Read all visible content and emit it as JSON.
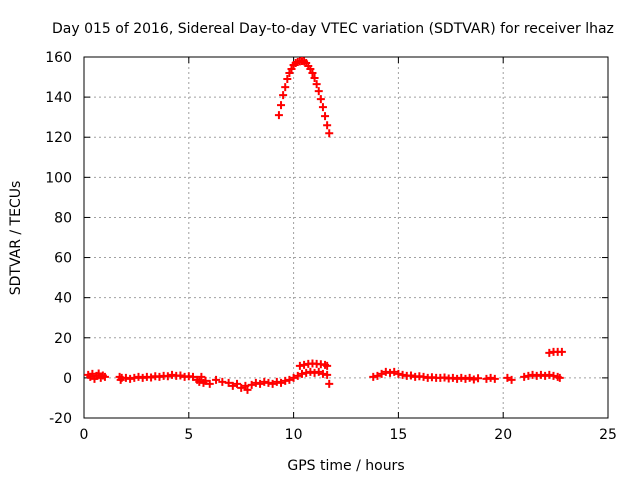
{
  "chart_data": {
    "type": "scatter",
    "title": "Day 015 of 2016, Sidereal Day-to-day VTEC variation (SDTVAR) for receiver lhaz",
    "xlabel": "GPS time / hours",
    "ylabel": "SDTVAR / TECUs",
    "xlim": [
      0,
      25
    ],
    "ylim": [
      -20,
      160
    ],
    "xticks": [
      0,
      5,
      10,
      15,
      20,
      25
    ],
    "yticks": [
      -20,
      0,
      20,
      40,
      60,
      80,
      100,
      120,
      140,
      160
    ],
    "grid": true,
    "legend": "none",
    "marker": "plus",
    "color": "#ff0000",
    "series": [
      {
        "points": [
          [
            0.2,
            1.5
          ],
          [
            0.3,
            0.5
          ],
          [
            0.4,
            2.0
          ],
          [
            0.5,
            -0.5
          ],
          [
            0.6,
            1.0
          ],
          [
            0.7,
            2.2
          ],
          [
            0.8,
            0.0
          ],
          [
            0.9,
            1.2
          ],
          [
            1.0,
            0.5
          ],
          [
            1.7,
            0.5
          ],
          [
            1.75,
            -1.0
          ],
          [
            1.8,
            0.0
          ],
          [
            2.0,
            0.0
          ],
          [
            2.2,
            -0.5
          ],
          [
            2.4,
            0.0
          ],
          [
            2.6,
            0.5
          ],
          [
            2.8,
            0.0
          ],
          [
            3.0,
            0.5
          ],
          [
            3.2,
            0.2
          ],
          [
            3.4,
            0.8
          ],
          [
            3.6,
            0.5
          ],
          [
            3.8,
            1.0
          ],
          [
            4.0,
            0.8
          ],
          [
            4.2,
            1.5
          ],
          [
            4.4,
            1.0
          ],
          [
            4.6,
            1.2
          ],
          [
            4.8,
            0.5
          ],
          [
            5.0,
            0.8
          ],
          [
            5.2,
            0.5
          ],
          [
            5.4,
            -1.0
          ],
          [
            5.5,
            -2.0
          ],
          [
            5.6,
            0.5
          ],
          [
            5.7,
            -2.5
          ],
          [
            5.8,
            -1.5
          ],
          [
            6.0,
            -3.0
          ],
          [
            6.3,
            -1.0
          ],
          [
            6.6,
            -2.0
          ],
          [
            6.9,
            -2.5
          ],
          [
            7.1,
            -4.0
          ],
          [
            7.3,
            -3.0
          ],
          [
            7.5,
            -5.0
          ],
          [
            7.7,
            -4.0
          ],
          [
            7.8,
            -6.0
          ],
          [
            8.0,
            -3.5
          ],
          [
            8.2,
            -2.5
          ],
          [
            8.4,
            -3.0
          ],
          [
            8.6,
            -2.0
          ],
          [
            8.8,
            -2.5
          ],
          [
            9.0,
            -3.0
          ],
          [
            9.2,
            -2.0
          ],
          [
            9.4,
            -2.5
          ],
          [
            9.6,
            -1.5
          ],
          [
            9.8,
            -1.0
          ],
          [
            10.0,
            0.0
          ],
          [
            10.2,
            1.0
          ],
          [
            10.4,
            2.0
          ],
          [
            10.6,
            2.5
          ],
          [
            10.8,
            3.0
          ],
          [
            11.0,
            2.5
          ],
          [
            11.2,
            3.0
          ],
          [
            11.4,
            2.0
          ],
          [
            11.6,
            1.5
          ],
          [
            11.7,
            -3.0
          ],
          [
            10.3,
            6.0
          ],
          [
            10.5,
            6.5
          ],
          [
            10.7,
            7.0
          ],
          [
            10.9,
            7.2
          ],
          [
            11.1,
            7.0
          ],
          [
            11.3,
            6.8
          ],
          [
            11.5,
            6.5
          ],
          [
            11.6,
            6.0
          ],
          [
            9.3,
            131
          ],
          [
            9.4,
            136
          ],
          [
            9.5,
            141
          ],
          [
            9.6,
            145
          ],
          [
            9.7,
            149
          ],
          [
            9.8,
            152
          ],
          [
            9.9,
            154
          ],
          [
            10.0,
            156
          ],
          [
            10.1,
            157
          ],
          [
            10.2,
            157.5
          ],
          [
            10.3,
            157.8
          ],
          [
            10.4,
            158
          ],
          [
            10.5,
            157.8
          ],
          [
            10.6,
            157
          ],
          [
            10.7,
            155.5
          ],
          [
            10.8,
            154
          ],
          [
            10.9,
            152
          ],
          [
            11.0,
            149.5
          ],
          [
            11.1,
            146.5
          ],
          [
            11.2,
            143
          ],
          [
            11.3,
            139
          ],
          [
            11.4,
            135
          ],
          [
            11.5,
            130.5
          ],
          [
            11.6,
            126
          ],
          [
            11.7,
            122
          ],
          [
            13.8,
            0.5
          ],
          [
            14.0,
            1.0
          ],
          [
            14.2,
            2.0
          ],
          [
            14.4,
            3.0
          ],
          [
            14.6,
            2.5
          ],
          [
            14.8,
            3.0
          ],
          [
            15.0,
            2.0
          ],
          [
            15.2,
            1.5
          ],
          [
            15.4,
            1.0
          ],
          [
            15.6,
            1.2
          ],
          [
            15.8,
            0.5
          ],
          [
            16.0,
            0.8
          ],
          [
            16.2,
            0.5
          ],
          [
            16.4,
            0.0
          ],
          [
            16.6,
            0.3
          ],
          [
            16.8,
            0.0
          ],
          [
            17.0,
            0.0
          ],
          [
            17.2,
            0.2
          ],
          [
            17.4,
            -0.3
          ],
          [
            17.6,
            0.0
          ],
          [
            17.8,
            -0.5
          ],
          [
            18.0,
            0.0
          ],
          [
            18.2,
            -0.5
          ],
          [
            18.4,
            0.0
          ],
          [
            18.6,
            -0.8
          ],
          [
            18.8,
            -0.2
          ],
          [
            19.2,
            -0.5
          ],
          [
            19.4,
            0.0
          ],
          [
            19.6,
            -0.5
          ],
          [
            20.2,
            0.0
          ],
          [
            20.4,
            -1.0
          ],
          [
            21.0,
            0.5
          ],
          [
            21.2,
            1.0
          ],
          [
            21.4,
            1.5
          ],
          [
            21.6,
            1.0
          ],
          [
            21.8,
            1.5
          ],
          [
            22.0,
            1.0
          ],
          [
            22.2,
            1.5
          ],
          [
            22.4,
            1.0
          ],
          [
            22.6,
            0.5
          ],
          [
            22.7,
            0.0
          ],
          [
            22.2,
            12.5
          ],
          [
            22.4,
            13.0
          ],
          [
            22.6,
            13.0
          ],
          [
            22.8,
            13.0
          ]
        ]
      }
    ]
  }
}
